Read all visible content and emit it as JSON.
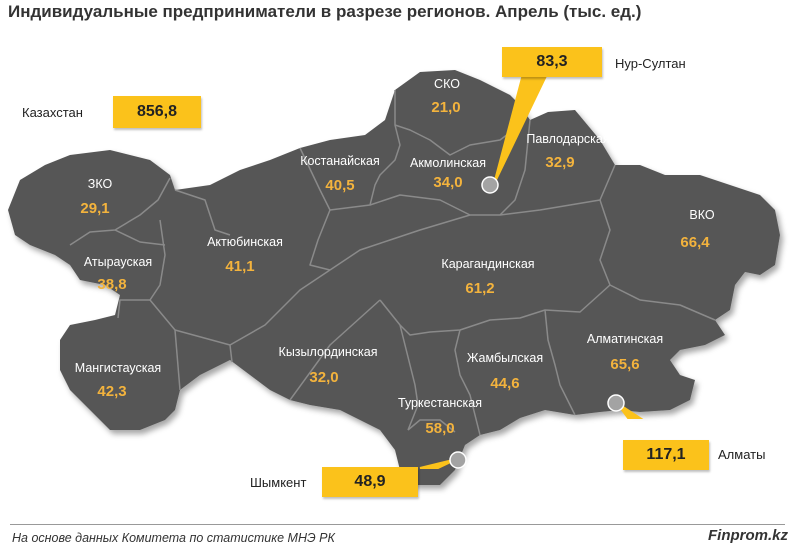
{
  "title": "Индивидуальные  предприниматели  в разрезе регионов. Апрель (тыс. ед.)",
  "total": {
    "label": "Казахстан",
    "value": "856,8"
  },
  "regions": [
    {
      "name": "ЗКО",
      "value": "29,1"
    },
    {
      "name": "Атырауская",
      "value": "38,8"
    },
    {
      "name": "Мангистауская",
      "value": "42,3"
    },
    {
      "name": "Актюбинская",
      "value": "41,1"
    },
    {
      "name": "Костанайская",
      "value": "40,5"
    },
    {
      "name": "СКО",
      "value": "21,0"
    },
    {
      "name": "Акмолинская",
      "value": "34,0"
    },
    {
      "name": "Павлодарская",
      "value": "32,9"
    },
    {
      "name": "ВКО",
      "value": "66,4"
    },
    {
      "name": "Карагандинская",
      "value": "61,2"
    },
    {
      "name": "Кызылординская",
      "value": "32,0"
    },
    {
      "name": "Туркестанская",
      "value": "58,0"
    },
    {
      "name": "Жамбылская",
      "value": "44,6"
    },
    {
      "name": "Алматинская",
      "value": "65,6"
    }
  ],
  "cities": [
    {
      "name": "Нур-Султан",
      "value": "83,3"
    },
    {
      "name": "Шымкент",
      "value": "48,9"
    },
    {
      "name": "Алматы",
      "value": "117,1"
    }
  ],
  "colors": {
    "map_fill": "#575757",
    "border": "#8a8a8a",
    "value_text": "#f3b33d",
    "callout": "#fbc21b"
  },
  "footer": {
    "source": "На основе данных  Комитета по статистике МНЭ РК",
    "brand": "Finprom.kz"
  }
}
